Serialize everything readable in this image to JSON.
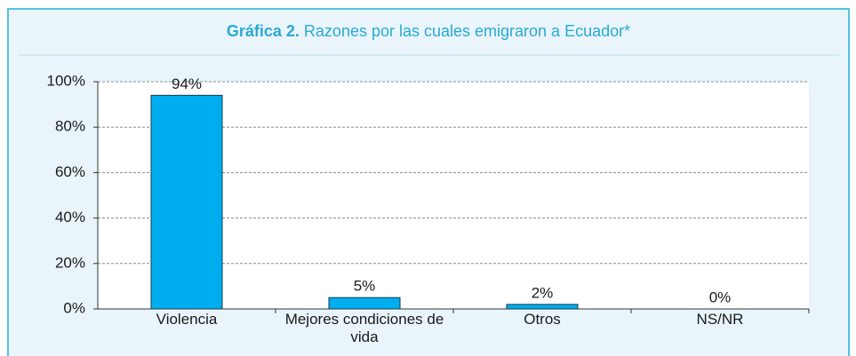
{
  "chart_data": {
    "type": "bar",
    "title_number": "Gráfica 2.",
    "title": "Razones por las cuales emigraron a Ecuador*",
    "categories": [
      "Violencia",
      "Mejores condiciones de vida",
      "Otros",
      "NS/NR"
    ],
    "values": [
      94,
      5,
      2,
      0
    ],
    "value_labels": [
      "94%",
      "5%",
      "2%",
      "0%"
    ],
    "color": "#00aeef",
    "ylim": [
      0,
      100
    ],
    "yticks": [
      {
        "value": 0,
        "label": "0%"
      },
      {
        "value": 20,
        "label": "20%"
      },
      {
        "value": 40,
        "label": "40%"
      },
      {
        "value": 60,
        "label": "60%"
      },
      {
        "value": 80,
        "label": "80%"
      },
      {
        "value": 100,
        "label": "100%"
      }
    ],
    "grid": true
  }
}
